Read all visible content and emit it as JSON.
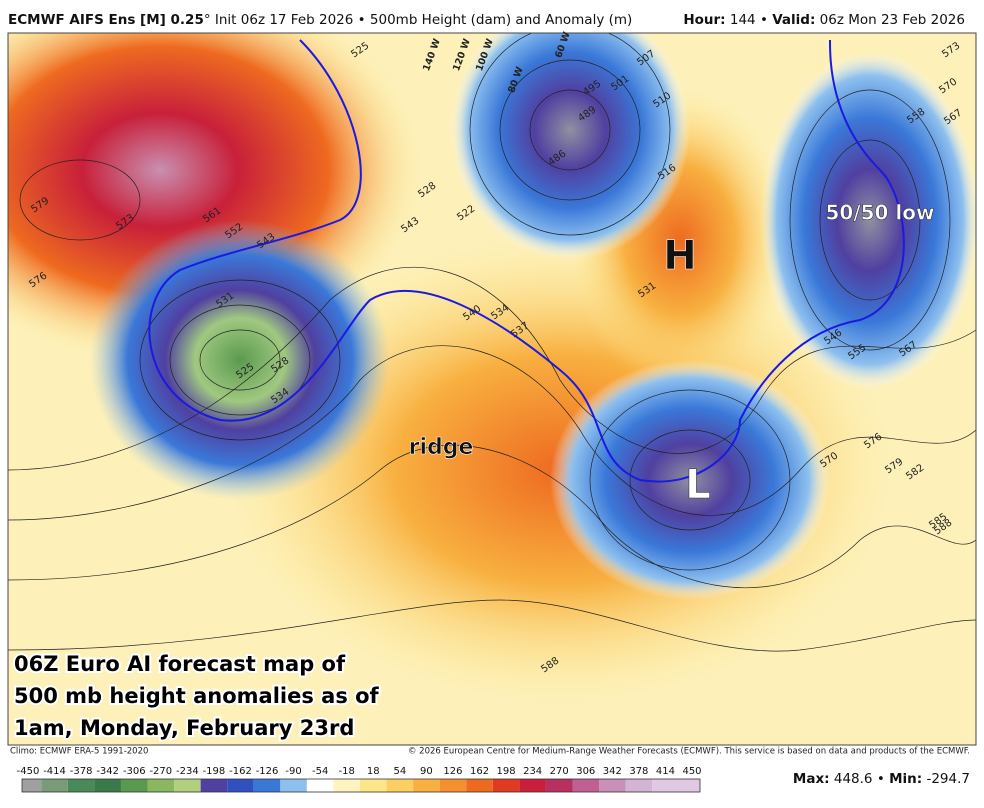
{
  "header": {
    "model": "ECMWF AIFS Ens [M] 0.25",
    "deg": "°",
    "init": "Init 06z 17 Feb 2026",
    "bullet": "•",
    "product": "500mb Height (dam) and Anomaly (m)",
    "hour_label": "Hour:",
    "hour": 144,
    "valid_label": "Valid:",
    "valid": "06z Mon 23 Feb 2026"
  },
  "map": {
    "labels": [
      "50/50 low",
      "H",
      "L",
      "ridge"
    ],
    "contour_labels": [
      525,
      579,
      573,
      561,
      552,
      543,
      576,
      531,
      525,
      528,
      534,
      495,
      489,
      501,
      507,
      510,
      516,
      486,
      534,
      537,
      540,
      531,
      546,
      555,
      567,
      570,
      576,
      579,
      582,
      585,
      588,
      558,
      573,
      570,
      567,
      588,
      528,
      522,
      543
    ],
    "meridian_labels": [
      "140 W",
      "120 W",
      "100 W",
      "80 W",
      "60 W"
    ],
    "caption": [
      "06Z Euro AI forecast map of",
      "500 mb height anomalies as of",
      "1am, Monday, February 23rd"
    ]
  },
  "footer": {
    "climo": "Climo: ECMWF ERA-5 1991-2020",
    "copyright": "© 2026 European Centre for Medium-Range Weather Forecasts (ECMWF). This service is based on data and products of the ECMWF.",
    "max_label": "Max:",
    "max": 448.6,
    "sep": "•",
    "min_label": "Min:",
    "min": -294.7
  },
  "colorbar": {
    "ticks": [
      -450,
      -414,
      -378,
      -342,
      -306,
      -270,
      -234,
      -198,
      -162,
      -126,
      -90,
      -54,
      -18,
      18,
      54,
      90,
      126,
      162,
      198,
      234,
      270,
      306,
      342,
      378,
      414,
      450
    ],
    "colors": [
      "#a0a0a0",
      "#7a9a7a",
      "#4a8a5a",
      "#3a7a4a",
      "#5a9a50",
      "#8ab860",
      "#b0d080",
      "#5040a0",
      "#3050c0",
      "#3a78d8",
      "#8ec0ee",
      "#ffffff",
      "#fff4c0",
      "#fde68a",
      "#fbd060",
      "#f8b040",
      "#f59030",
      "#ee6a20",
      "#e03a20",
      "#c8203a",
      "#b83060",
      "#c06090",
      "#c890b8",
      "#d4b4d4",
      "#e0c8e0"
    ]
  }
}
